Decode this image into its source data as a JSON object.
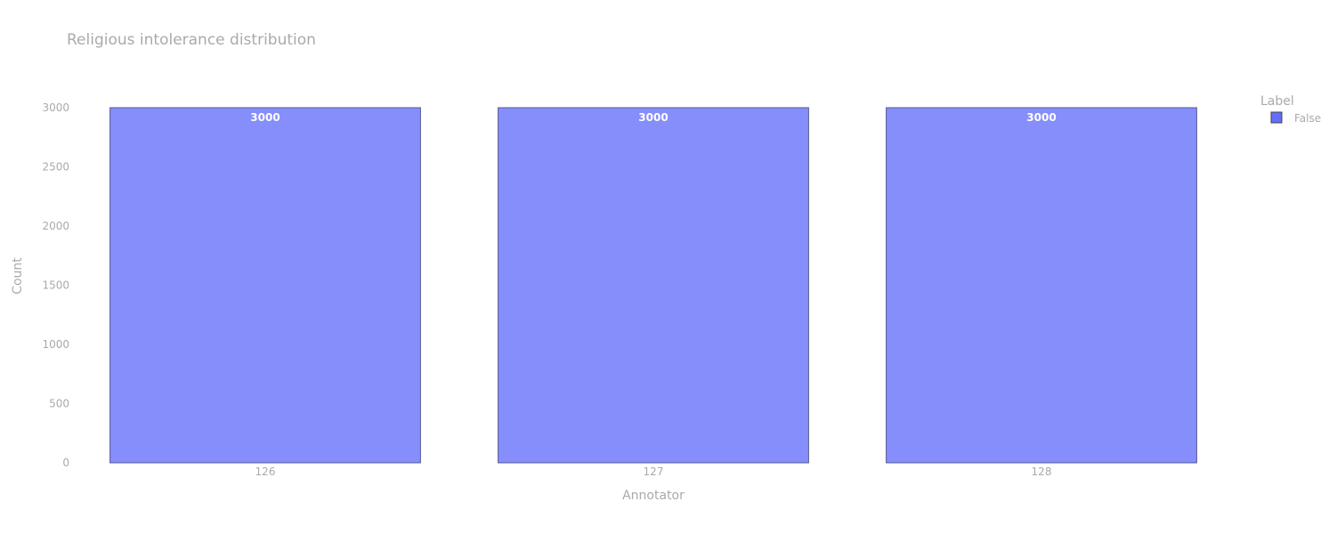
{
  "chart_data": {
    "type": "bar",
    "title": "Religious intolerance distribution",
    "xlabel": "Annotator",
    "ylabel": "Count",
    "categories": [
      "126",
      "127",
      "128"
    ],
    "series": [
      {
        "name": "False",
        "values": [
          3000,
          3000,
          3000
        ],
        "color": "#636efa"
      }
    ],
    "ylim": [
      0,
      3000
    ],
    "yticks": [
      "0",
      "500",
      "1000",
      "1500",
      "2000",
      "2500",
      "3000"
    ],
    "legend": {
      "title": "Label",
      "placement": "top-right"
    },
    "grid": false
  }
}
